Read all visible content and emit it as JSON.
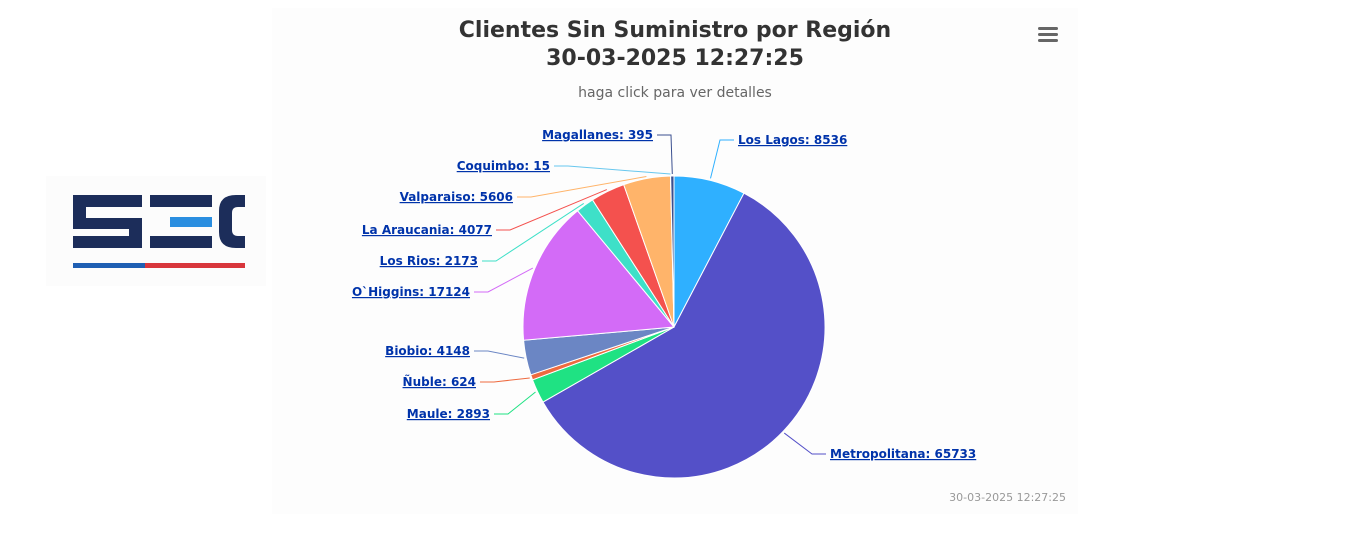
{
  "title_line1": "Clientes Sin Suministro por Región",
  "title_line2": "30-03-2025 12:27:25",
  "subtitle": "haga click para ver detalles",
  "credit": "30-03-2025 12:27:25",
  "logo_text": "SEC",
  "menu_icon": "hamburger-menu-icon",
  "chart_data": {
    "type": "pie",
    "title": "Clientes Sin Suministro por Región",
    "subtitle": "haga click para ver detalles",
    "series": [
      {
        "name": "Clientes Sin Suministro",
        "data": [
          {
            "label": "Los Lagos",
            "value": 8536,
            "color": "#2fb0ff"
          },
          {
            "label": "Metropolitana",
            "value": 65733,
            "color": "#5450c8"
          },
          {
            "label": "Maule",
            "value": 2893,
            "color": "#1fe283"
          },
          {
            "label": "Ñuble",
            "value": 624,
            "color": "#ee6a3f"
          },
          {
            "label": "Biobio",
            "value": 4148,
            "color": "#6b86c4"
          },
          {
            "label": "O`Higgins",
            "value": 17124,
            "color": "#d36bf7"
          },
          {
            "label": "Los Rios",
            "value": 2173,
            "color": "#3ee0c8"
          },
          {
            "label": "La Araucania",
            "value": 4077,
            "color": "#f4514e"
          },
          {
            "label": "Valparaiso",
            "value": 5606,
            "color": "#ffb46a"
          },
          {
            "label": "Coquimbo",
            "value": 15,
            "color": "#68c7ee"
          },
          {
            "label": "Magallanes",
            "value": 395,
            "color": "#3a4f8f"
          }
        ]
      }
    ],
    "labels_format": "{label}: {value}",
    "legend": "none"
  }
}
